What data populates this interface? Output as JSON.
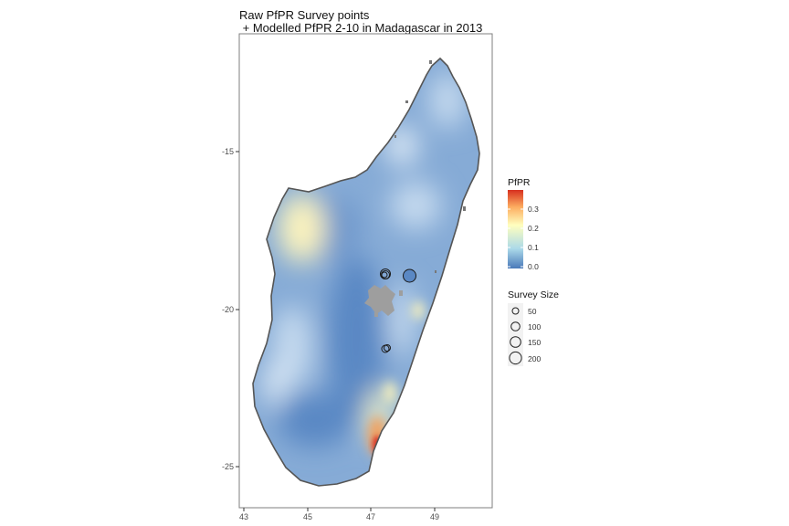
{
  "title_line1": "Raw PfPR Survey points",
  "title_line2": " + Modelled PfPR 2-10 in Madagascar in 2013",
  "axes": {
    "x_ticks": [
      "43",
      "45",
      "47",
      "49"
    ],
    "y_ticks": [
      "-15",
      "-20",
      "-25"
    ]
  },
  "legend_fill": {
    "title": "PfPR",
    "labels": [
      "0.3",
      "0.2",
      "0.1",
      "0.0"
    ],
    "colors": [
      "#d7301f",
      "#fdae61",
      "#ffffbf",
      "#abd9e9",
      "#4a79b9"
    ]
  },
  "legend_size": {
    "title": "Survey Size",
    "labels": [
      "50",
      "100",
      "150",
      "200"
    ]
  },
  "map_colors": {
    "base": "#86abd6",
    "low": "#5a88c4",
    "mid": "#c4d9ee",
    "high_yellow": "#fbf3bd",
    "high_orange": "#f2a25e",
    "hot": "#d73027",
    "missing_gray": "#9e9e9e",
    "outline": "#555555"
  }
}
